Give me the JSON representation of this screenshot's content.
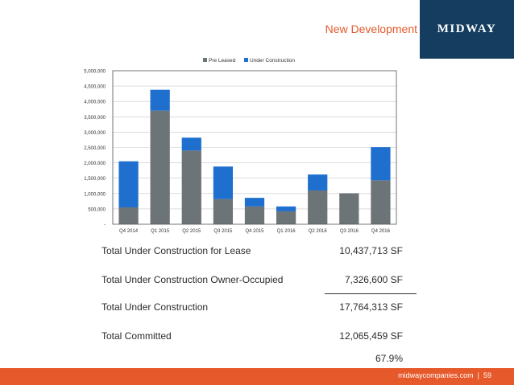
{
  "header": {
    "title": "New Development",
    "logo_text": "MIDWAY"
  },
  "chart_data": {
    "type": "bar",
    "stacked": true,
    "categories": [
      "Q4 2014",
      "Q1 2015",
      "Q2 2015",
      "Q3 2015",
      "Q4 2015",
      "Q1 2016",
      "Q2 2016",
      "Q3 2016",
      "Q4 2016"
    ],
    "series": [
      {
        "name": "Pre Leased",
        "color": "#6d7478",
        "values": [
          550000,
          3700000,
          2400000,
          820000,
          580000,
          420000,
          1100000,
          1010000,
          1430000
        ]
      },
      {
        "name": "Under Construction",
        "color": "#1f6fcf",
        "values": [
          1500000,
          680000,
          420000,
          1060000,
          280000,
          160000,
          520000,
          0,
          1080000
        ]
      }
    ],
    "yticks": [
      "-",
      "500,000",
      "1,000,000",
      "1,500,000",
      "2,000,000",
      "2,500,000",
      "3,000,000",
      "3,500,000",
      "4,000,000",
      "4,500,000",
      "5,000,000"
    ],
    "ylim": [
      0,
      5000000
    ],
    "grid": true,
    "legend_position": "top-center"
  },
  "summary": {
    "rows": [
      {
        "label": "Total Under Construction for Lease",
        "value": "10,437,713 SF"
      },
      {
        "label": "Total Under Construction Owner-Occupied",
        "value": "7,326,600 SF"
      },
      {
        "label": "Total Under Construction",
        "value": "17,764,313 SF"
      },
      {
        "label": "Total Committed",
        "value": "12,065,459 SF"
      }
    ],
    "percent": "67.9%"
  },
  "footer": {
    "site": "midwaycompanies.com",
    "separator": "|",
    "page_number": "59"
  },
  "colors": {
    "accent": "#e5592a",
    "logo_bg": "#143d5f"
  }
}
